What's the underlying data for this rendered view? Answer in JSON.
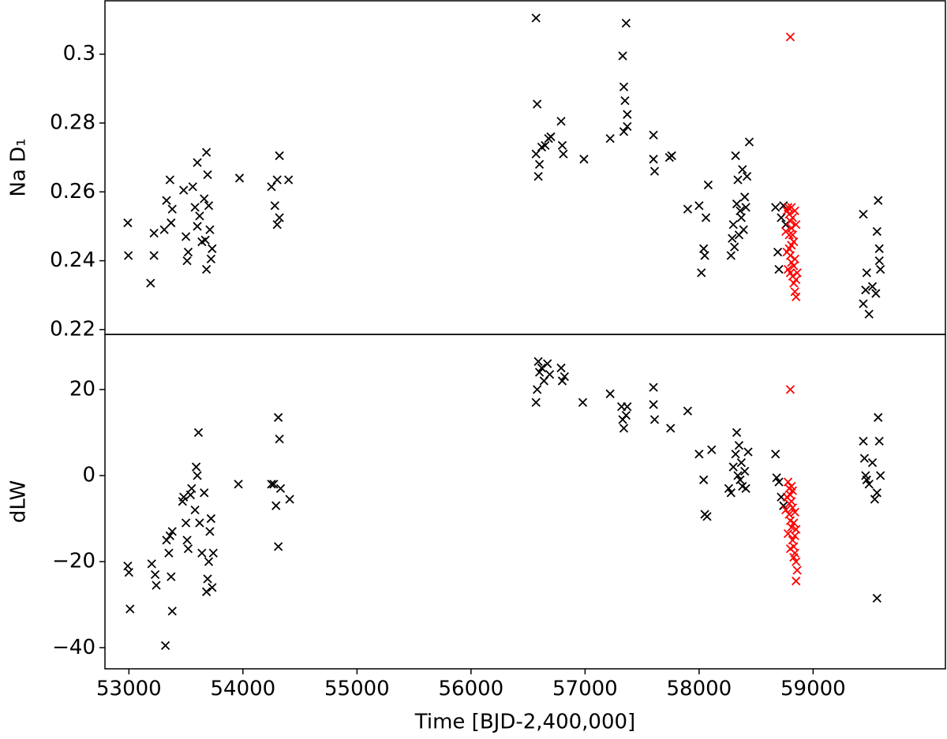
{
  "chart_data": [
    {
      "type": "scatter",
      "ylabel": "Na D₁",
      "xlim": [
        52790,
        60160
      ],
      "ylim": [
        0.2186,
        0.3155
      ],
      "yticks": [
        0.22,
        0.24,
        0.26,
        0.28,
        0.3
      ],
      "series": [
        {
          "color": "#000000",
          "x": [
            52990,
            52995,
            53190,
            53220,
            53220,
            53310,
            53330,
            53360,
            53380,
            53370,
            53480,
            53500,
            53510,
            53520,
            53560,
            53580,
            53600,
            53600,
            53620,
            53640,
            53660,
            53680,
            53690,
            53700,
            53710,
            53680,
            53720,
            53730,
            53670,
            53970,
            54250,
            54280,
            54300,
            54300,
            54320,
            54320,
            54400,
            56570,
            56580,
            56570,
            56590,
            56600,
            56620,
            56650,
            56680,
            56700,
            56790,
            56800,
            56810,
            56990,
            57220,
            57330,
            57340,
            57350,
            57360,
            57370,
            57340,
            57370,
            57600,
            57600,
            57610,
            57740,
            57760,
            57900,
            58000,
            58020,
            58040,
            58060,
            58080,
            58050,
            58280,
            58300,
            58320,
            58330,
            58340,
            58350,
            58360,
            58370,
            58380,
            58400,
            58410,
            58420,
            58440,
            58290,
            58310,
            58390,
            58670,
            58690,
            58700,
            58720,
            58740,
            58760,
            59440,
            59440,
            59460,
            59470,
            59490,
            59520,
            59550,
            59560,
            59570,
            59580,
            59590,
            59580
          ],
          "values": [
            0.251,
            0.2415,
            0.2335,
            0.248,
            0.2415,
            0.249,
            0.2575,
            0.2635,
            0.255,
            0.251,
            0.2605,
            0.247,
            0.24,
            0.2425,
            0.2615,
            0.2555,
            0.2685,
            0.25,
            0.253,
            0.2455,
            0.258,
            0.2715,
            0.265,
            0.256,
            0.249,
            0.2375,
            0.2405,
            0.2435,
            0.246,
            0.264,
            0.2615,
            0.256,
            0.2505,
            0.2635,
            0.2705,
            0.2525,
            0.2635,
            0.3105,
            0.2855,
            0.271,
            0.2645,
            0.268,
            0.273,
            0.2735,
            0.2755,
            0.276,
            0.2805,
            0.2735,
            0.271,
            0.2695,
            0.2755,
            0.2995,
            0.2905,
            0.2865,
            0.309,
            0.2825,
            0.2775,
            0.279,
            0.2765,
            0.2695,
            0.266,
            0.27,
            0.2705,
            0.255,
            0.256,
            0.2365,
            0.2435,
            0.2525,
            0.262,
            0.2415,
            0.2415,
            0.2505,
            0.2705,
            0.2565,
            0.2635,
            0.2475,
            0.2545,
            0.2525,
            0.2665,
            0.2585,
            0.2555,
            0.2645,
            0.2745,
            0.2465,
            0.244,
            0.249,
            0.2555,
            0.2425,
            0.2375,
            0.2525,
            0.256,
            0.2505,
            0.2535,
            0.2275,
            0.2315,
            0.2365,
            0.2245,
            0.2325,
            0.2305,
            0.2485,
            0.2575,
            0.2435,
            0.2375,
            0.24
          ]
        },
        {
          "color": "#ff0000",
          "x": [
            58780,
            58790,
            58800,
            58810,
            58820,
            58830,
            58790,
            58800,
            58810,
            58780,
            58820,
            58830,
            58840,
            58850,
            58800,
            58810,
            58840,
            58850,
            58760,
            58770,
            58860,
            58840,
            58790,
            58820,
            58830,
            58850,
            58770,
            58810,
            58800
          ],
          "values": [
            0.2555,
            0.2535,
            0.2515,
            0.2495,
            0.2475,
            0.2455,
            0.2435,
            0.2415,
            0.2395,
            0.2375,
            0.2355,
            0.2335,
            0.231,
            0.2295,
            0.2365,
            0.2445,
            0.2545,
            0.2505,
            0.2485,
            0.2425,
            0.2365,
            0.2405,
            0.2475,
            0.2525,
            0.2385,
            0.2345,
            0.2545,
            0.2555,
            0.305
          ]
        }
      ]
    },
    {
      "type": "scatter",
      "ylabel": "dLW",
      "xlabel": "Time [BJD-2,400,000]",
      "xlim": [
        52790,
        60160
      ],
      "ylim": [
        -44.9,
        32.8
      ],
      "xticks": [
        53000,
        54000,
        55000,
        56000,
        57000,
        58000,
        59000
      ],
      "yticks": [
        {
          "value": -40,
          "label": "−40"
        },
        {
          "value": -20,
          "label": "−20"
        },
        0,
        20
      ],
      "series": [
        {
          "color": "#000000",
          "x": [
            52990,
            53000,
            53010,
            53200,
            53230,
            53240,
            53320,
            53330,
            53360,
            53350,
            53370,
            53380,
            53380,
            53470,
            53480,
            53500,
            53510,
            53520,
            53540,
            53550,
            53580,
            53590,
            53600,
            53610,
            53620,
            53640,
            53660,
            53680,
            53690,
            53700,
            53710,
            53720,
            53730,
            53740,
            53960,
            54250,
            54270,
            54290,
            54310,
            54310,
            54320,
            54330,
            54410,
            56570,
            56580,
            56590,
            56600,
            56620,
            56640,
            56670,
            56690,
            56790,
            56800,
            56820,
            56980,
            57220,
            57320,
            57330,
            57340,
            57360,
            57370,
            57600,
            57600,
            57610,
            57750,
            57900,
            58000,
            58040,
            58050,
            58070,
            58110,
            58260,
            58280,
            58300,
            58320,
            58330,
            58340,
            58350,
            58360,
            58370,
            58380,
            58400,
            58410,
            58430,
            58670,
            58680,
            58700,
            58720,
            58740,
            59440,
            59450,
            59460,
            59470,
            59490,
            59520,
            59540,
            59560,
            59570,
            59580,
            59590,
            59560
          ],
          "values": [
            -21,
            -22.5,
            -31,
            -20.5,
            -23,
            -25.5,
            -39.5,
            -15,
            -14,
            -18,
            -23.5,
            -31.5,
            -13,
            -6,
            -5,
            -11,
            -15,
            -17,
            -4.5,
            -3,
            -8,
            2,
            0,
            10,
            -11,
            -18,
            -4,
            -27,
            -24,
            -20,
            -13,
            -10,
            -26,
            -18,
            -2,
            -2,
            -2,
            -7,
            -16.5,
            13.5,
            8.5,
            -3,
            -5.5,
            17,
            20,
            26.5,
            24,
            25,
            22,
            26,
            23.5,
            25,
            22,
            23,
            17,
            19,
            16,
            13,
            11,
            14,
            16,
            20.5,
            16.5,
            13,
            11,
            15,
            5,
            -1,
            -9,
            -9.5,
            6,
            -3,
            -4,
            2,
            5,
            10,
            0,
            7,
            -1,
            3,
            -2.5,
            1,
            -3,
            5.5,
            5,
            -0.5,
            -1.5,
            -5,
            -7,
            8,
            4,
            0,
            -1,
            -2,
            3,
            -5.5,
            -4,
            13.5,
            8,
            0,
            -28.5
          ]
        },
        {
          "color": "#ff0000",
          "x": [
            58800,
            58780,
            58790,
            58800,
            58810,
            58820,
            58790,
            58800,
            58810,
            58780,
            58820,
            58830,
            58840,
            58850,
            58860,
            58850,
            58770,
            58760,
            58830,
            58840,
            58810,
            58800,
            58830,
            58840,
            58850,
            58790,
            58820
          ],
          "values": [
            20,
            -1.5,
            -3,
            -4.5,
            -6,
            -7.5,
            -9,
            -10.5,
            -12,
            -13.5,
            -15,
            -16.5,
            -18,
            -20,
            -22,
            -24.5,
            -5,
            -8,
            -11,
            -14,
            -2.5,
            -17,
            -19,
            -8.5,
            -12.5,
            -6.5,
            -3.5
          ]
        }
      ]
    }
  ]
}
